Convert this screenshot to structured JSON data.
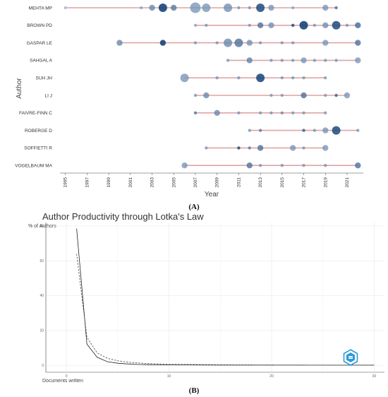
{
  "panel_a_label": "(A)",
  "panel_b_label": "(B)",
  "colors": {
    "segment": "#e0a4a4",
    "grid": "#e6e6e6",
    "bubble_light": "#9fb7d3",
    "bubble_dark": "#0d3c73",
    "solid_line": "#222222",
    "dashed_line": "#444444",
    "logo": "#2b9bd8"
  },
  "icons": [
    "logo-badge-icon"
  ],
  "chart_data": [
    {
      "type": "scatter",
      "title": "",
      "xlabel": "Year",
      "ylabel": "Author",
      "xlim": [
        1994.5,
        2022.5
      ],
      "x_ticks": [
        "1995",
        "1997",
        "1999",
        "2001",
        "2003",
        "2005",
        "2007",
        "2009",
        "2011",
        "2013",
        "2015",
        "2017",
        "2019",
        "2021"
      ],
      "grid": false,
      "authors": [
        {
          "name": "MEHTA MP",
          "range": [
            1995,
            2020
          ],
          "points": [
            [
              1995,
              1,
              0.05
            ],
            [
              2002,
              1,
              0.2
            ],
            [
              2003,
              2,
              0.4
            ],
            [
              2004,
              3,
              0.95
            ],
            [
              2005,
              2,
              0.5
            ],
            [
              2007,
              4,
              0.3
            ],
            [
              2008,
              3,
              0.3
            ],
            [
              2010,
              3,
              0.35
            ],
            [
              2011,
              1,
              0.3
            ],
            [
              2012,
              1,
              0.3
            ],
            [
              2013,
              3,
              0.85
            ],
            [
              2014,
              2,
              0.3
            ],
            [
              2016,
              1,
              0.2
            ],
            [
              2019,
              2,
              0.3
            ],
            [
              2020,
              1,
              0.6
            ]
          ]
        },
        {
          "name": "BROWN PD",
          "range": [
            2007,
            2022
          ],
          "points": [
            [
              2007,
              1,
              0.2
            ],
            [
              2008,
              1,
              0.3
            ],
            [
              2012,
              1,
              0.3
            ],
            [
              2013,
              2,
              0.55
            ],
            [
              2014,
              2,
              0.35
            ],
            [
              2016,
              1,
              0.85
            ],
            [
              2017,
              3,
              0.95
            ],
            [
              2018,
              1,
              0.3
            ],
            [
              2019,
              2,
              0.35
            ],
            [
              2020,
              3,
              0.85
            ],
            [
              2021,
              1,
              0.3
            ],
            [
              2022,
              2,
              0.6
            ]
          ]
        },
        {
          "name": "GASPAR LE",
          "range": [
            2000,
            2022
          ],
          "points": [
            [
              2000,
              2,
              0.4
            ],
            [
              2004,
              2,
              0.95
            ],
            [
              2007,
              1,
              0.3
            ],
            [
              2009,
              1,
              0.3
            ],
            [
              2010,
              3,
              0.4
            ],
            [
              2011,
              3,
              0.55
            ],
            [
              2012,
              2,
              0.35
            ],
            [
              2013,
              1,
              0.3
            ],
            [
              2015,
              1,
              0.3
            ],
            [
              2016,
              1,
              0.3
            ],
            [
              2019,
              2,
              0.3
            ],
            [
              2022,
              2,
              0.55
            ]
          ]
        },
        {
          "name": "SAHGAL A",
          "range": [
            2010,
            2022
          ],
          "points": [
            [
              2010,
              1,
              0.3
            ],
            [
              2012,
              2,
              0.45
            ],
            [
              2014,
              1,
              0.3
            ],
            [
              2015,
              1,
              0.3
            ],
            [
              2016,
              1,
              0.3
            ],
            [
              2017,
              2,
              0.3
            ],
            [
              2018,
              1,
              0.3
            ],
            [
              2019,
              1,
              0.3
            ],
            [
              2020,
              1,
              0.3
            ],
            [
              2022,
              2,
              0.3
            ]
          ]
        },
        {
          "name": "SUH JH",
          "range": [
            2006,
            2019
          ],
          "points": [
            [
              2006,
              3,
              0.3
            ],
            [
              2009,
              1,
              0.3
            ],
            [
              2011,
              1,
              0.3
            ],
            [
              2013,
              3,
              0.9
            ],
            [
              2015,
              1,
              0.3
            ],
            [
              2016,
              1,
              0.3
            ],
            [
              2017,
              1,
              0.3
            ],
            [
              2019,
              1,
              0.3
            ]
          ]
        },
        {
          "name": "LI J",
          "range": [
            2007,
            2021
          ],
          "points": [
            [
              2007,
              1,
              0.3
            ],
            [
              2008,
              2,
              0.4
            ],
            [
              2014,
              1,
              0.3
            ],
            [
              2015,
              1,
              0.3
            ],
            [
              2017,
              2,
              0.55
            ],
            [
              2019,
              1,
              0.3
            ],
            [
              2020,
              1,
              0.7
            ],
            [
              2021,
              2,
              0.3
            ]
          ]
        },
        {
          "name": "FAIVRE-FINN C",
          "range": [
            2007,
            2019
          ],
          "points": [
            [
              2007,
              1,
              0.55
            ],
            [
              2009,
              2,
              0.4
            ],
            [
              2011,
              1,
              0.3
            ],
            [
              2013,
              1,
              0.3
            ],
            [
              2014,
              1,
              0.3
            ],
            [
              2015,
              1,
              0.4
            ],
            [
              2016,
              1,
              0.3
            ],
            [
              2017,
              1,
              0.3
            ],
            [
              2019,
              1,
              0.3
            ]
          ]
        },
        {
          "name": "ROBERGE D",
          "range": [
            2012,
            2022
          ],
          "points": [
            [
              2012,
              1,
              0.3
            ],
            [
              2013,
              1,
              0.5
            ],
            [
              2017,
              1,
              0.7
            ],
            [
              2018,
              1,
              0.3
            ],
            [
              2019,
              2,
              0.3
            ],
            [
              2020,
              3,
              0.85
            ],
            [
              2022,
              1,
              0.3
            ]
          ]
        },
        {
          "name": "SOFFIETTI R",
          "range": [
            2008,
            2019
          ],
          "points": [
            [
              2008,
              1,
              0.3
            ],
            [
              2011,
              1,
              0.85
            ],
            [
              2012,
              1,
              0.5
            ],
            [
              2013,
              2,
              0.55
            ],
            [
              2016,
              2,
              0.3
            ],
            [
              2017,
              1,
              0.3
            ],
            [
              2019,
              2,
              0.3
            ]
          ]
        },
        {
          "name": "VOGELBAUM MA",
          "range": [
            2006,
            2022
          ],
          "points": [
            [
              2006,
              2,
              0.3
            ],
            [
              2012,
              2,
              0.55
            ],
            [
              2013,
              1,
              0.3
            ],
            [
              2015,
              1,
              0.3
            ],
            [
              2017,
              1,
              0.3
            ],
            [
              2019,
              1,
              0.3
            ],
            [
              2022,
              2,
              0.55
            ]
          ]
        }
      ]
    },
    {
      "type": "line",
      "title": "Author Productivity through Lotka's Law",
      "xlabel": "Documents written",
      "ylabel": "% of Authors",
      "xlim": [
        -2,
        31
      ],
      "ylim": [
        -4,
        82
      ],
      "x_ticks": [
        0,
        10,
        20,
        30
      ],
      "y_ticks": [
        0,
        20,
        40,
        60,
        80
      ],
      "grid": true,
      "series": [
        {
          "style": "solid",
          "x": [
            1,
            2,
            3,
            4,
            5,
            6,
            7,
            8,
            10,
            12,
            15,
            20,
            25,
            30
          ],
          "y": [
            78.5,
            12.2,
            4.6,
            2.1,
            1.2,
            0.8,
            0.5,
            0.4,
            0.3,
            0.2,
            0.1,
            0.1,
            0.1,
            0.1
          ]
        },
        {
          "style": "dashed",
          "x": [
            1,
            2,
            3,
            4,
            5,
            6,
            7,
            8,
            10,
            12,
            15,
            20,
            25,
            30
          ],
          "y": [
            64,
            16,
            7.1,
            4.0,
            2.6,
            1.8,
            1.3,
            1.0,
            0.6,
            0.45,
            0.3,
            0.16,
            0.1,
            0.07
          ]
        }
      ]
    }
  ]
}
